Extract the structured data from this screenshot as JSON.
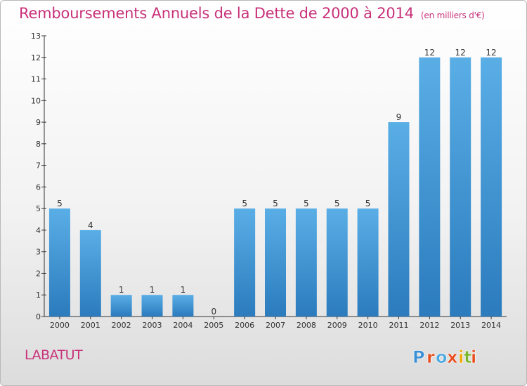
{
  "header": {
    "title": "Remboursements Annuels de la Dette de 2000 à 2014",
    "unit": "(en milliers d'€)"
  },
  "footer": {
    "commune": "LABATUT",
    "logo_text": "Proxiti"
  },
  "colors": {
    "title": "#c8317a",
    "bar_top": "#5aaee6",
    "bar_bottom": "#2b7bbd",
    "logo_letters": [
      "#3b8fd6",
      "#e84b1c",
      "#4aa8e0",
      "#e84b1c",
      "#f0a500",
      "#7ab62d",
      "#e84b1c"
    ]
  },
  "chart_data": {
    "type": "bar",
    "title": "Remboursements Annuels de la Dette de 2000 à 2014",
    "xlabel": "",
    "ylabel": "",
    "categories": [
      "2000",
      "2001",
      "2002",
      "2003",
      "2004",
      "2005",
      "2006",
      "2007",
      "2008",
      "2009",
      "2010",
      "2011",
      "2012",
      "2013",
      "2014"
    ],
    "values": [
      5,
      4,
      1,
      1,
      1,
      0,
      5,
      5,
      5,
      5,
      5,
      9,
      12,
      12,
      12
    ],
    "ylim": [
      0,
      13
    ],
    "yticks": [
      0,
      1,
      2,
      3,
      4,
      5,
      6,
      7,
      8,
      9,
      10,
      11,
      12,
      13
    ],
    "grid": false,
    "legend": "none"
  }
}
